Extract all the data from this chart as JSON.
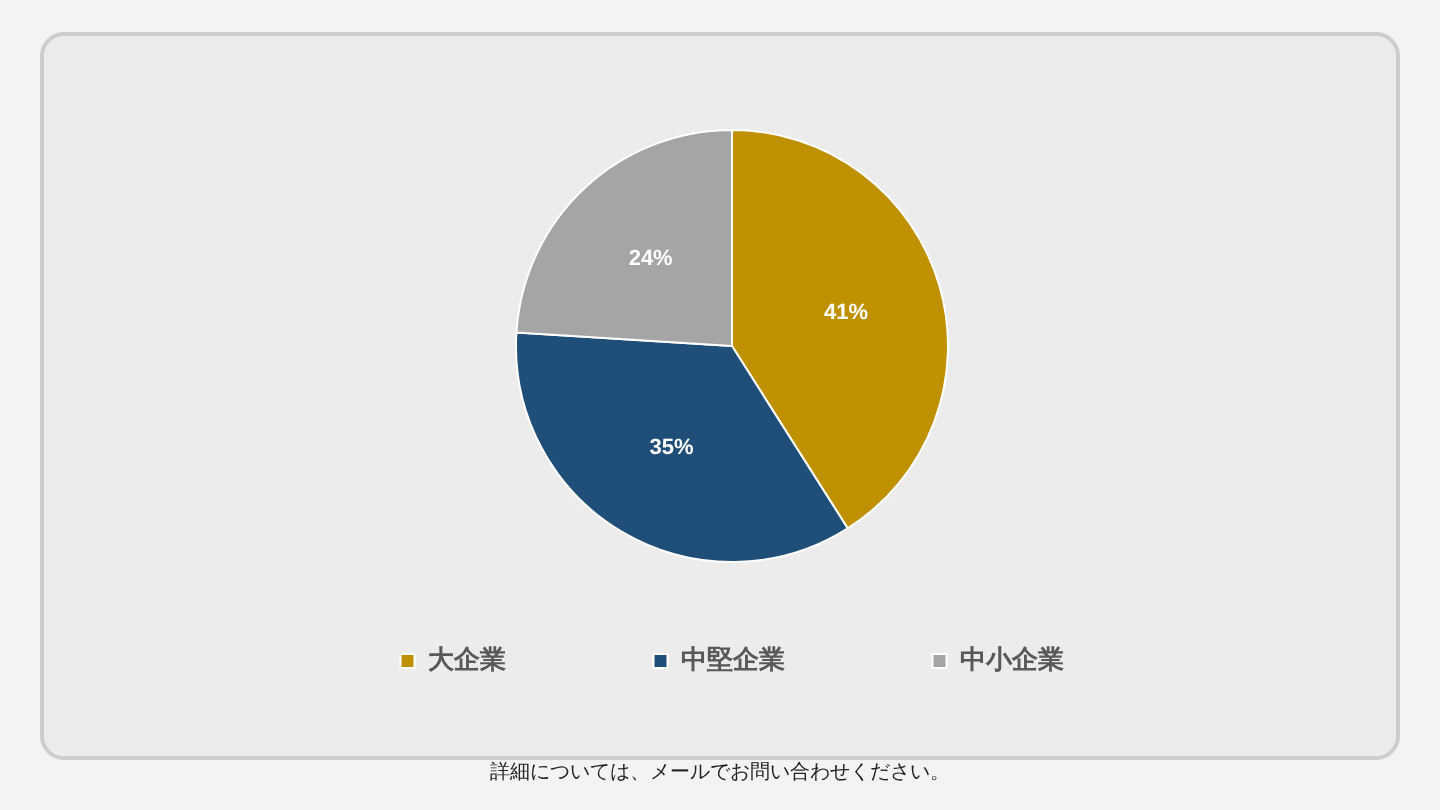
{
  "chart_data": {
    "type": "pie",
    "categories": [
      "大企業",
      "中堅企業",
      "中小企業"
    ],
    "values": [
      41,
      35,
      24
    ],
    "colors": [
      "#bf9000",
      "#1f4e79",
      "#a5a5a5"
    ],
    "value_labels": [
      "41%",
      "35%",
      "24%"
    ],
    "legend": "bottom",
    "annotations": [
      "詳細については、メールでお問い合わせください。"
    ]
  }
}
